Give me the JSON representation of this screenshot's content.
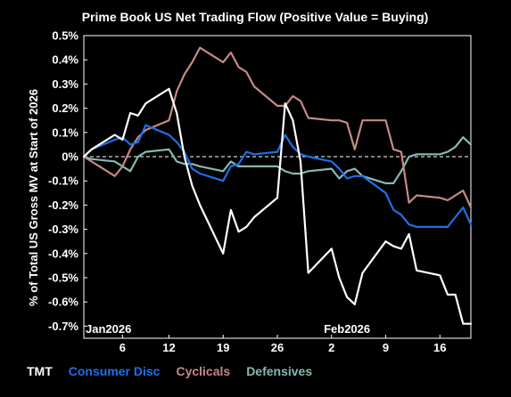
{
  "chart_data": {
    "type": "line",
    "title": "Prime Book US Net Trading Flow (Positive Value = Buying)",
    "ylabel": "% of Total US Gross MV at Start of 2026",
    "xlabel": "",
    "ylim": [
      -0.75,
      0.5
    ],
    "y_ticks": [
      0.5,
      0.4,
      0.3,
      0.2,
      0.1,
      0,
      -0.1,
      -0.2,
      -0.3,
      -0.4,
      -0.5,
      -0.6,
      -0.7
    ],
    "y_tick_labels": [
      "0.5%",
      "0.4%",
      "0.3%",
      "0.2%",
      "0.1%",
      "0%",
      "-0.1%",
      "-0.2%",
      "-0.3%",
      "-0.4%",
      "-0.5%",
      "-0.6%",
      "-0.7%"
    ],
    "x_tick_labels": [
      "6",
      "12",
      "19",
      "26",
      "2",
      "9",
      "16"
    ],
    "x_tick_dates": [
      "2026-01-06",
      "2026-01-12",
      "2026-01-19",
      "2026-01-26",
      "2026-02-02",
      "2026-02-09",
      "2026-02-16"
    ],
    "x_month_labels": [
      {
        "label": "Jan2026",
        "date": "2026-01-01"
      },
      {
        "label": "Feb2026",
        "date": "2026-02-01"
      }
    ],
    "x_range": [
      "2026-01-01",
      "2026-02-20"
    ],
    "zero_line": true,
    "grid": false,
    "legend": "bottom-left",
    "x": [
      "2026-01-01",
      "2026-01-02",
      "2026-01-05",
      "2026-01-06",
      "2026-01-07",
      "2026-01-08",
      "2026-01-09",
      "2026-01-12",
      "2026-01-13",
      "2026-01-14",
      "2026-01-15",
      "2026-01-16",
      "2026-01-19",
      "2026-01-20",
      "2026-01-21",
      "2026-01-22",
      "2026-01-23",
      "2026-01-26",
      "2026-01-27",
      "2026-01-28",
      "2026-01-29",
      "2026-01-30",
      "2026-02-02",
      "2026-02-03",
      "2026-02-04",
      "2026-02-05",
      "2026-02-06",
      "2026-02-09",
      "2026-02-10",
      "2026-02-11",
      "2026-02-12",
      "2026-02-13",
      "2026-02-16",
      "2026-02-17",
      "2026-02-18",
      "2026-02-19",
      "2026-02-20"
    ],
    "series": [
      {
        "name": "TMT",
        "color": "#ffffff",
        "values": [
          0.0,
          0.03,
          0.09,
          0.07,
          0.18,
          0.17,
          0.22,
          0.28,
          0.18,
          0.0,
          -0.12,
          -0.2,
          -0.4,
          -0.22,
          -0.31,
          -0.29,
          -0.25,
          -0.17,
          0.22,
          0.15,
          -0.02,
          -0.48,
          -0.38,
          -0.5,
          -0.58,
          -0.61,
          -0.48,
          -0.35,
          -0.37,
          -0.38,
          -0.32,
          -0.47,
          -0.49,
          -0.57,
          -0.57,
          -0.69,
          -0.69
        ]
      },
      {
        "name": "Consumer Disc",
        "color": "#1e6fe8",
        "values": [
          0.0,
          0.03,
          0.07,
          0.08,
          0.05,
          0.06,
          0.13,
          0.09,
          0.06,
          0.02,
          -0.05,
          -0.07,
          -0.1,
          -0.04,
          -0.03,
          0.02,
          0.01,
          0.02,
          0.09,
          0.04,
          0.01,
          0.0,
          -0.02,
          -0.05,
          -0.09,
          -0.08,
          -0.08,
          -0.15,
          -0.22,
          -0.24,
          -0.28,
          -0.29,
          -0.29,
          -0.29,
          -0.25,
          -0.21,
          -0.28
        ]
      },
      {
        "name": "Cyclicals",
        "color": "#c48a86",
        "values": [
          0.0,
          -0.02,
          -0.08,
          -0.04,
          0.03,
          0.08,
          0.11,
          0.15,
          0.27,
          0.34,
          0.39,
          0.45,
          0.39,
          0.43,
          0.37,
          0.35,
          0.29,
          0.21,
          0.21,
          0.25,
          0.23,
          0.16,
          0.15,
          0.15,
          0.14,
          0.03,
          0.15,
          0.15,
          0.03,
          0.02,
          -0.19,
          -0.16,
          -0.17,
          -0.18,
          -0.16,
          -0.14,
          -0.21
        ]
      },
      {
        "name": "Defensives",
        "color": "#88b8b2",
        "values": [
          0.0,
          -0.01,
          -0.02,
          -0.04,
          -0.06,
          0.0,
          0.02,
          0.03,
          -0.02,
          -0.03,
          -0.03,
          -0.04,
          -0.06,
          -0.02,
          -0.04,
          -0.04,
          -0.04,
          -0.04,
          -0.06,
          -0.07,
          -0.07,
          -0.06,
          -0.05,
          -0.09,
          -0.06,
          -0.05,
          -0.08,
          -0.11,
          -0.11,
          -0.06,
          0.0,
          0.01,
          0.01,
          0.02,
          0.04,
          0.08,
          0.05
        ]
      }
    ]
  }
}
